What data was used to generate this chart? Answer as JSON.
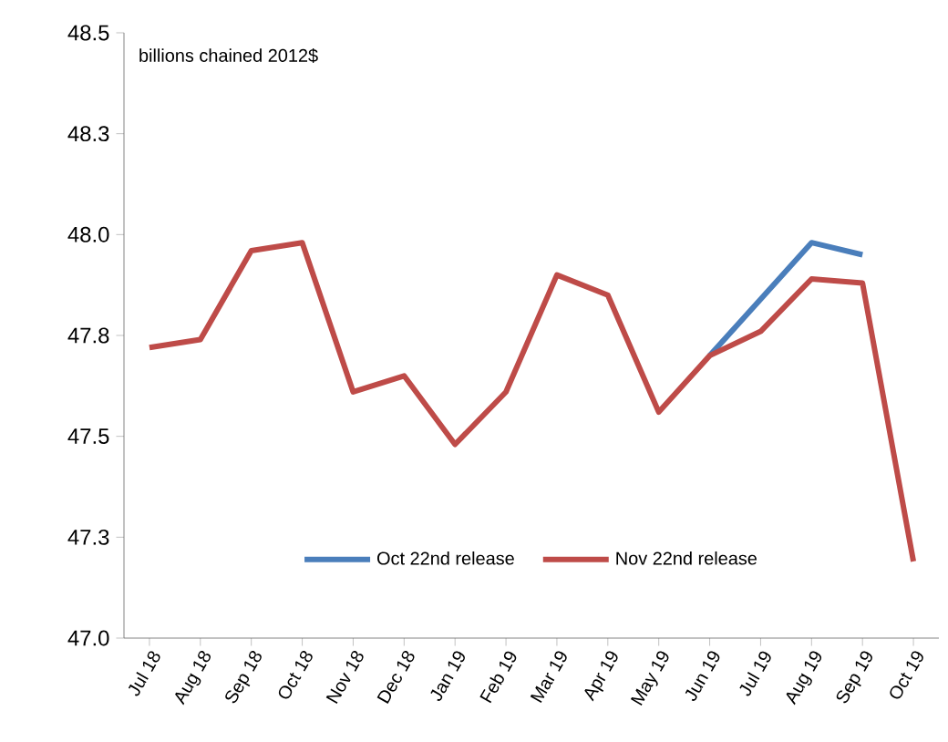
{
  "chart_data": {
    "type": "line",
    "annotations": [
      "billions chained 2012$"
    ],
    "categories": [
      "Jul 18",
      "Aug 18",
      "Sep 18",
      "Oct 18",
      "Nov 18",
      "Dec 18",
      "Jan 19",
      "Feb 19",
      "Mar 19",
      "Apr 19",
      "May 19",
      "Jun 19",
      "Jul 19",
      "Aug 19",
      "Sep 19",
      "Oct 19"
    ],
    "ylim": [
      47.0,
      48.5
    ],
    "yticks": [
      {
        "value": 47.0,
        "label": "47.0"
      },
      {
        "value": 47.25,
        "label": "47.3"
      },
      {
        "value": 47.5,
        "label": "47.5"
      },
      {
        "value": 47.75,
        "label": "47.8"
      },
      {
        "value": 48.0,
        "label": "48.0"
      },
      {
        "value": 48.25,
        "label": "48.3"
      },
      {
        "value": 48.5,
        "label": "48.5"
      }
    ],
    "series": [
      {
        "name": "Oct 22nd release",
        "color": "#4a7ebb",
        "values": [
          null,
          null,
          null,
          null,
          null,
          null,
          null,
          null,
          null,
          null,
          null,
          47.7,
          47.84,
          47.98,
          47.95,
          null
        ]
      },
      {
        "name": "Nov 22nd release",
        "color": "#be4b48",
        "values": [
          47.72,
          47.74,
          47.96,
          47.98,
          47.61,
          47.65,
          47.48,
          47.61,
          47.9,
          47.85,
          47.56,
          47.7,
          47.76,
          47.89,
          47.88,
          47.19
        ]
      }
    ],
    "legend": "bottom",
    "grid": false,
    "marker": "none",
    "line_style": "solid"
  }
}
